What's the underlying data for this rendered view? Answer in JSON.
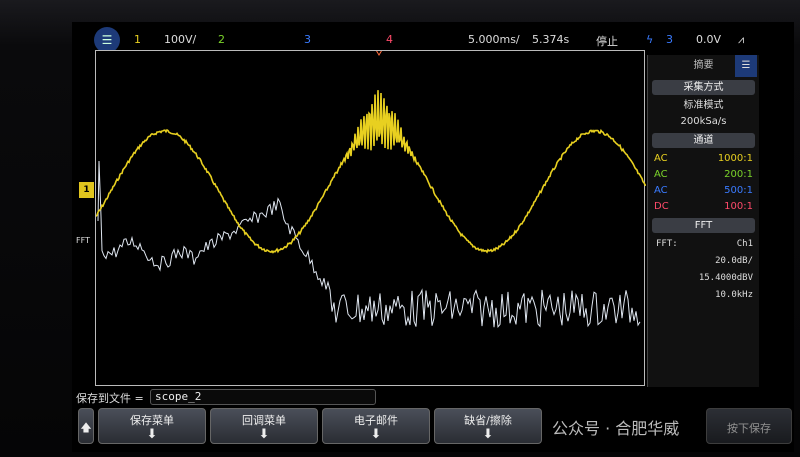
{
  "topbar": {
    "ch1": "1",
    "ch1_scale": "100V/",
    "ch2": "2",
    "ch3": "3",
    "ch4": "4",
    "timebase": "5.000ms/",
    "delay": "5.374s",
    "run_state": "停止",
    "trigger_source": "3",
    "trigger_level": "0.0V"
  },
  "colors": {
    "ch1": "#e8d020",
    "ch2": "#7bd42a",
    "ch3": "#3a7bff",
    "ch4": "#ff4a6a",
    "fft": "#dfe6f0"
  },
  "markers": {
    "ch1": "1",
    "fft": "FFT"
  },
  "sidebar": {
    "title": "摘要",
    "acq_header": "采集方式",
    "acq_mode": "标准模式",
    "sample_rate": "200kSa/s",
    "channels_header": "通道",
    "channels": [
      {
        "coupling": "AC",
        "probe": "1000:1"
      },
      {
        "coupling": "AC",
        "probe": "200:1"
      },
      {
        "coupling": "AC",
        "probe": "500:1"
      },
      {
        "coupling": "DC",
        "probe": "100:1"
      }
    ],
    "fft_header": "FFT",
    "fft_label": "FFT:",
    "fft_source": "Ch1",
    "fft_scale": "20.0dB/",
    "fft_ref": "15.4000dBV",
    "fft_span": "10.0kHz"
  },
  "save": {
    "label": "保存到文件 =",
    "filename": "scope_2"
  },
  "softkeys": [
    "保存菜单",
    "回调菜单",
    "电子邮件",
    "缺省/擦除",
    "按下保存"
  ],
  "watermark": "公众号 · 合肥华威"
}
